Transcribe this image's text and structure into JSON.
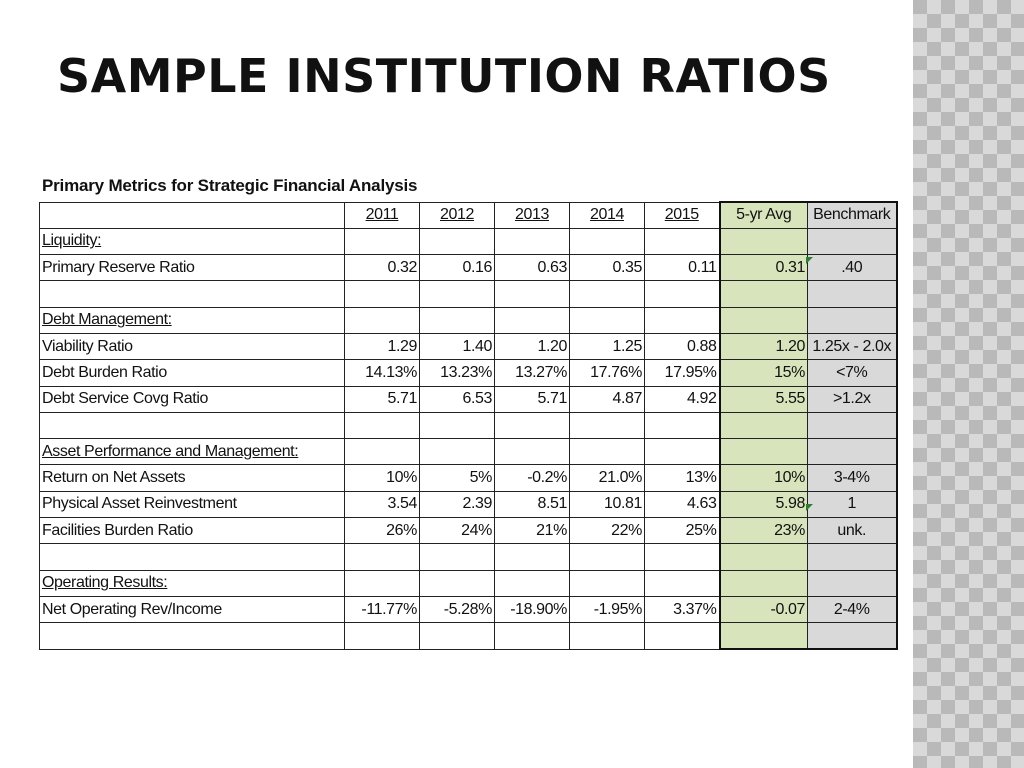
{
  "slide": {
    "title": "SAMPLE INSTITUTION RATIOS",
    "caption": "Primary Metrics for Strategic Financial Analysis"
  },
  "table": {
    "columns": [
      "",
      "2011",
      "2012",
      "2013",
      "2014",
      "2015",
      "5-yr Avg",
      "Benchmark"
    ],
    "rows": [
      {
        "type": "section",
        "label": "Liquidity:"
      },
      {
        "type": "data",
        "label": "Primary Reserve Ratio",
        "values": [
          "0.32",
          "0.16",
          "0.63",
          "0.35",
          "0.11"
        ],
        "avg": "0.31",
        "benchmark": ".40"
      },
      {
        "type": "blank"
      },
      {
        "type": "section",
        "label": "Debt Management:"
      },
      {
        "type": "data",
        "label": "Viability Ratio",
        "values": [
          "1.29",
          "1.40",
          "1.20",
          "1.25",
          "0.88"
        ],
        "avg": "1.20",
        "benchmark": "1.25x - 2.0x"
      },
      {
        "type": "data",
        "label": "Debt Burden Ratio",
        "values": [
          "14.13%",
          "13.23%",
          "13.27%",
          "17.76%",
          "17.95%"
        ],
        "avg": "15%",
        "benchmark": "<7%"
      },
      {
        "type": "data",
        "label": "Debt Service Covg Ratio",
        "values": [
          "5.71",
          "6.53",
          "5.71",
          "4.87",
          "4.92"
        ],
        "avg": "5.55",
        "benchmark": ">1.2x"
      },
      {
        "type": "blank"
      },
      {
        "type": "section",
        "label": "Asset Performance and Management:"
      },
      {
        "type": "data",
        "label": "Return on Net Assets",
        "values": [
          "10%",
          "5%",
          "-0.2%",
          "21.0%",
          "13%"
        ],
        "avg": "10%",
        "benchmark": "3-4%"
      },
      {
        "type": "data",
        "label": "Physical Asset Reinvestment",
        "values": [
          "3.54",
          "2.39",
          "8.51",
          "10.81",
          "4.63"
        ],
        "avg": "5.98",
        "benchmark": "1"
      },
      {
        "type": "data",
        "label": "Facilities Burden Ratio",
        "values": [
          "26%",
          "24%",
          "21%",
          "22%",
          "25%"
        ],
        "avg": "23%",
        "benchmark": "unk."
      },
      {
        "type": "blank"
      },
      {
        "type": "section",
        "label": "Operating Results:"
      },
      {
        "type": "data",
        "label": "Net Operating Rev/Income",
        "values": [
          "-11.77%",
          "-5.28%",
          "-18.90%",
          "-1.95%",
          "3.37%"
        ],
        "avg": "-0.07",
        "benchmark": "2-4%"
      },
      {
        "type": "blank"
      }
    ]
  },
  "colors": {
    "avg_fill": "#d8e4bc",
    "benchmark_fill": "#d9d9d9",
    "comment_marker": "#2e7d32"
  }
}
